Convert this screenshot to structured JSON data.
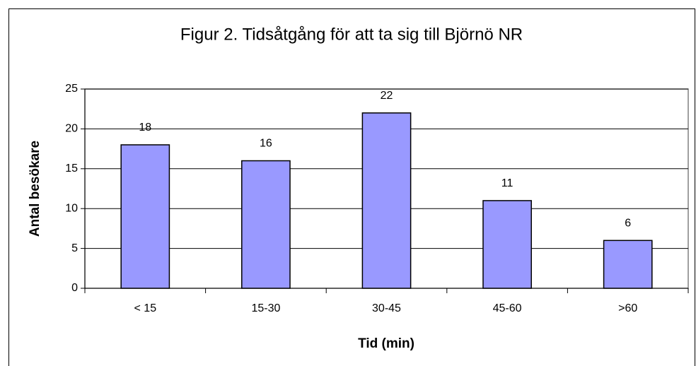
{
  "chart_data": {
    "type": "bar",
    "title": "Figur 2. Tidsåtgång för att ta sig till Björnö NR",
    "x_label": "Tid (min)",
    "y_label": "Antal besökare",
    "categories": [
      "< 15",
      "15-30",
      "30-45",
      "45-60",
      ">60"
    ],
    "values": [
      18,
      16,
      22,
      11,
      6
    ],
    "color": "#9999ff",
    "ylim": [
      0,
      25
    ],
    "yticks": [
      0,
      5,
      10,
      15,
      20,
      25
    ],
    "grid": true,
    "data_labels": true
  }
}
